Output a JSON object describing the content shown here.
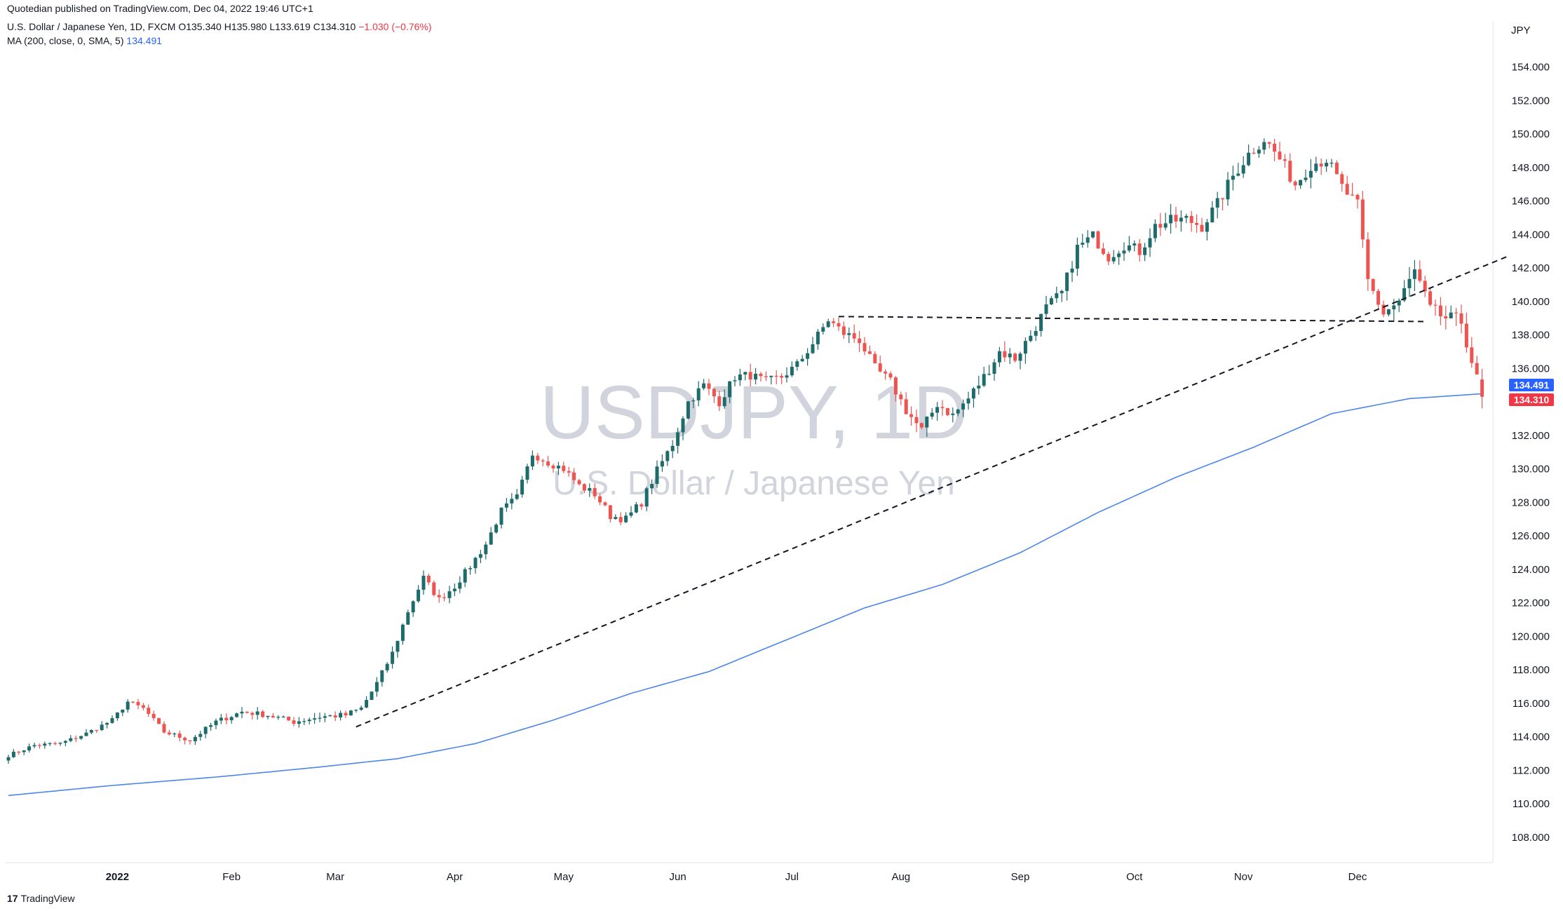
{
  "header": {
    "published": "Quotedian published on TradingView.com, Dec 04, 2022 19:46 UTC+1",
    "symbol_line": "U.S. Dollar / Japanese Yen, 1D, FXCM",
    "ohlc": "O135.340 H135.980 L133.619 C134.310",
    "change": "−1.030 (−0.76%)",
    "ma_label": "MA (200, close, 0, SMA, 5)",
    "ma_value": "134.491"
  },
  "watermark": {
    "symbol": "USDJPY, 1D",
    "description": "U.S. Dollar / Japanese Yen"
  },
  "brand": {
    "logo": "17",
    "name": "TradingView"
  },
  "colors": {
    "up": "#1e6b6b",
    "down": "#ef5350",
    "ma": "#4c86e8",
    "ma_tag": "#2962ff",
    "price_tag": "#f23645"
  },
  "chart_data": {
    "type": "candlestick",
    "currency": "JPY",
    "ylim": [
      106.5,
      156.5
    ],
    "y_ticks": [
      "108.000",
      "110.000",
      "112.000",
      "114.000",
      "116.000",
      "118.000",
      "120.000",
      "122.000",
      "124.000",
      "126.000",
      "128.000",
      "130.000",
      "132.000",
      "134.000",
      "136.000",
      "138.000",
      "140.000",
      "142.000",
      "144.000",
      "146.000",
      "148.000",
      "150.000",
      "152.000",
      "154.000"
    ],
    "x_labels": [
      {
        "label": "2022",
        "bold": true,
        "index": 21
      },
      {
        "label": "Feb",
        "bold": false,
        "index": 43
      },
      {
        "label": "Mar",
        "bold": false,
        "index": 63
      },
      {
        "label": "Apr",
        "bold": false,
        "index": 86
      },
      {
        "label": "May",
        "bold": false,
        "index": 107
      },
      {
        "label": "Jun",
        "bold": false,
        "index": 129
      },
      {
        "label": "Jul",
        "bold": false,
        "index": 151
      },
      {
        "label": "Aug",
        "bold": false,
        "index": 172
      },
      {
        "label": "Sep",
        "bold": false,
        "index": 195
      },
      {
        "label": "Oct",
        "bold": false,
        "index": 217
      },
      {
        "label": "Nov",
        "bold": false,
        "index": 238
      },
      {
        "label": "Dec",
        "bold": false,
        "index": 260
      }
    ],
    "anchors": [
      [
        0,
        112.9
      ],
      [
        5,
        113.5
      ],
      [
        10,
        113.6
      ],
      [
        15,
        114.2
      ],
      [
        20,
        115.0
      ],
      [
        23,
        116.1
      ],
      [
        26,
        115.7
      ],
      [
        30,
        114.3
      ],
      [
        35,
        113.8
      ],
      [
        40,
        114.9
      ],
      [
        45,
        115.5
      ],
      [
        50,
        115.3
      ],
      [
        55,
        114.9
      ],
      [
        60,
        115.2
      ],
      [
        65,
        115.3
      ],
      [
        68,
        115.7
      ],
      [
        71,
        117.2
      ],
      [
        74,
        119.0
      ],
      [
        77,
        121.5
      ],
      [
        80,
        123.5
      ],
      [
        83,
        122.2
      ],
      [
        86,
        123.0
      ],
      [
        89,
        124.2
      ],
      [
        92,
        125.5
      ],
      [
        95,
        127.5
      ],
      [
        98,
        128.3
      ],
      [
        101,
        130.9
      ],
      [
        104,
        130.4
      ],
      [
        107,
        130.0
      ],
      [
        110,
        129.0
      ],
      [
        113,
        128.5
      ],
      [
        116,
        127.2
      ],
      [
        119,
        127.0
      ],
      [
        122,
        128.0
      ],
      [
        125,
        129.9
      ],
      [
        128,
        131.5
      ],
      [
        131,
        134.0
      ],
      [
        134,
        135.0
      ],
      [
        137,
        134.0
      ],
      [
        140,
        135.5
      ],
      [
        143,
        135.6
      ],
      [
        146,
        135.2
      ],
      [
        149,
        135.5
      ],
      [
        152,
        136.2
      ],
      [
        155,
        137.5
      ],
      [
        158,
        138.9
      ],
      [
        161,
        138.1
      ],
      [
        164,
        137.7
      ],
      [
        167,
        136.0
      ],
      [
        170,
        135.2
      ],
      [
        173,
        133.5
      ],
      [
        176,
        132.3
      ],
      [
        179,
        133.9
      ],
      [
        182,
        133.2
      ],
      [
        185,
        134.2
      ],
      [
        188,
        135.5
      ],
      [
        191,
        137.0
      ],
      [
        194,
        136.6
      ],
      [
        197,
        138.0
      ],
      [
        200,
        139.6
      ],
      [
        203,
        140.5
      ],
      [
        206,
        143.2
      ],
      [
        209,
        143.9
      ],
      [
        212,
        142.7
      ],
      [
        215,
        143.4
      ],
      [
        218,
        143.0
      ],
      [
        221,
        144.5
      ],
      [
        224,
        144.8
      ],
      [
        227,
        144.9
      ],
      [
        230,
        144.5
      ],
      [
        233,
        145.8
      ],
      [
        236,
        147.5
      ],
      [
        239,
        148.8
      ],
      [
        242,
        149.7
      ],
      [
        245,
        148.5
      ],
      [
        248,
        147.0
      ],
      [
        251,
        148.2
      ],
      [
        254,
        148.5
      ],
      [
        257,
        146.8
      ],
      [
        260,
        145.7
      ],
      [
        262,
        141.2
      ],
      [
        265,
        139.3
      ],
      [
        268,
        140.0
      ],
      [
        271,
        141.8
      ],
      [
        274,
        139.5
      ],
      [
        277,
        139.0
      ],
      [
        280,
        138.8
      ],
      [
        283,
        135.3
      ],
      [
        284,
        134.31
      ]
    ],
    "last_candle": {
      "open": 135.34,
      "high": 135.98,
      "low": 133.619,
      "close": 134.31
    },
    "ma_series": {
      "name": "MA (200, close, 0, SMA, 5)",
      "points": [
        [
          0,
          110.5
        ],
        [
          20,
          111.1
        ],
        [
          40,
          111.6
        ],
        [
          60,
          112.2
        ],
        [
          75,
          112.7
        ],
        [
          90,
          113.6
        ],
        [
          105,
          115.0
        ],
        [
          120,
          116.6
        ],
        [
          135,
          117.9
        ],
        [
          150,
          119.8
        ],
        [
          165,
          121.7
        ],
        [
          180,
          123.1
        ],
        [
          195,
          125.0
        ],
        [
          210,
          127.4
        ],
        [
          225,
          129.5
        ],
        [
          240,
          131.3
        ],
        [
          255,
          133.3
        ],
        [
          270,
          134.2
        ],
        [
          284,
          134.491
        ]
      ]
    },
    "trendlines": [
      {
        "from": [
          67,
          114.6
        ],
        "to": [
          289,
          142.7
        ],
        "style": "dashed"
      },
      {
        "from": [
          160,
          139.1
        ],
        "to": [
          273,
          138.8
        ],
        "style": "dashed"
      }
    ],
    "price_tags": [
      {
        "label": "134.491",
        "value": 134.491,
        "color": "#2962ff"
      },
      {
        "label": "134.310",
        "value": 134.31,
        "color": "#f23645"
      }
    ]
  }
}
